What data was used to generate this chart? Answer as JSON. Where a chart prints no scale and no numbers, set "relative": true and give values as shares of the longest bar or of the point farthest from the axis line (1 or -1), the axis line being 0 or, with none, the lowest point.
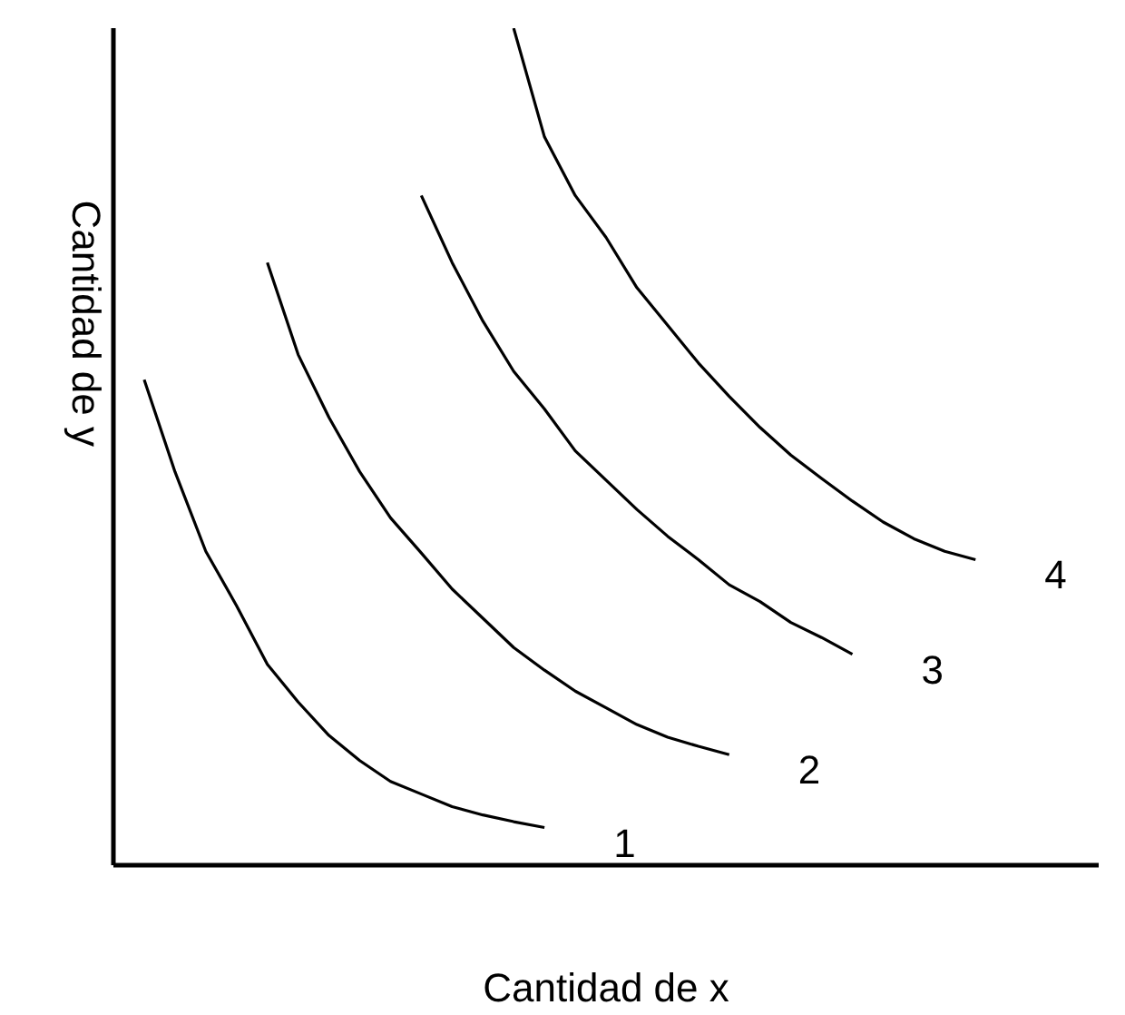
{
  "chart_data": {
    "type": "line",
    "relative": true,
    "xlabel": "Cantidad de x",
    "ylabel": "Cantidad de y",
    "line_style": "solid",
    "categories": [
      null,
      null,
      null,
      null,
      null,
      null,
      null,
      null,
      null,
      null,
      null,
      null,
      null,
      null,
      null,
      null,
      null,
      null,
      null,
      null,
      null,
      null,
      null,
      null,
      null,
      null,
      null,
      null,
      null,
      null,
      null,
      null,
      null
    ],
    "series": [
      {
        "name": "1",
        "color": "#000000",
        "values": [
          null,
          0.58,
          0.47,
          0.375,
          0.31,
          0.24,
          0.195,
          0.155,
          0.125,
          0.1,
          0.085,
          0.07,
          0.06,
          0.052,
          0.045,
          null,
          null,
          null,
          null,
          null,
          null,
          null,
          null,
          null,
          null,
          null,
          null,
          null,
          null,
          null,
          null,
          null,
          null
        ]
      },
      {
        "name": "2",
        "color": "#000000",
        "values": [
          null,
          null,
          null,
          null,
          null,
          0.72,
          0.61,
          0.535,
          0.47,
          0.415,
          0.373,
          0.33,
          0.295,
          0.26,
          0.233,
          0.208,
          0.188,
          0.168,
          0.153,
          0.142,
          0.132,
          null,
          null,
          null,
          null,
          null,
          null,
          null,
          null,
          null,
          null,
          null,
          null
        ]
      },
      {
        "name": "3",
        "color": "#000000",
        "values": [
          null,
          null,
          null,
          null,
          null,
          null,
          null,
          null,
          null,
          null,
          0.8,
          0.72,
          0.65,
          0.59,
          0.545,
          0.495,
          0.46,
          0.425,
          0.393,
          0.365,
          0.335,
          0.315,
          0.29,
          0.272,
          0.252,
          null,
          null,
          null,
          null,
          null,
          null,
          null,
          null
        ]
      },
      {
        "name": "4",
        "color": "#000000",
        "values": [
          null,
          null,
          null,
          null,
          null,
          null,
          null,
          null,
          null,
          null,
          null,
          null,
          null,
          1.0,
          0.87,
          0.8,
          0.75,
          0.69,
          0.645,
          0.6,
          0.56,
          0.523,
          0.49,
          0.462,
          0.435,
          0.41,
          0.39,
          0.375,
          0.365,
          null,
          null,
          null,
          null
        ]
      }
    ]
  }
}
